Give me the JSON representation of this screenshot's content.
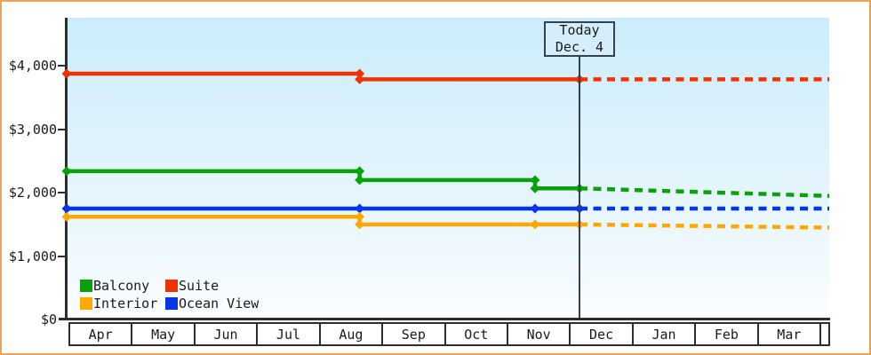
{
  "y_axis": {
    "labels": [
      "$0",
      "$1,000",
      "$2,000",
      "$3,000",
      "$4,000"
    ],
    "values": [
      0,
      1000,
      2000,
      3000,
      4000
    ]
  },
  "x_axis": {
    "months": [
      "Apr",
      "May",
      "Jun",
      "Jul",
      "Aug",
      "Sep",
      "Oct",
      "Nov",
      "Dec",
      "Jan",
      "Feb",
      "Mar"
    ]
  },
  "legend": {
    "items": [
      {
        "label": "Balcony",
        "color": "#09a109"
      },
      {
        "label": "Suite",
        "color": "#f13200"
      },
      {
        "label": "Interior",
        "color": "#ffa800"
      },
      {
        "label": "Ocean View",
        "color": "#0335ee"
      }
    ]
  },
  "chart_data": {
    "type": "line",
    "x_unit": "months from Apr (fraction = day of month)",
    "x_categories": [
      "Apr",
      "May",
      "Jun",
      "Jul",
      "Aug",
      "Sep",
      "Oct",
      "Nov",
      "Dec",
      "Jan",
      "Feb",
      "Mar"
    ],
    "ylim": [
      0,
      4000
    ],
    "y_ticks": [
      0,
      1000,
      2000,
      3000,
      4000
    ],
    "grid": false,
    "legend_position": "bottom-left inside plot",
    "today": {
      "label": "Today",
      "date": "Dec. 4",
      "x": 8.07
    },
    "series": [
      {
        "name": "Suite",
        "color": "#f13200",
        "solid": [
          [
            0,
            3880
          ],
          [
            4.61,
            3880
          ],
          [
            4.61,
            3790
          ],
          [
            8.07,
            3790
          ]
        ],
        "projection": [
          [
            8.07,
            3790
          ],
          [
            12,
            3790
          ]
        ],
        "markers": [
          [
            0,
            3880
          ],
          [
            4.61,
            3880
          ],
          [
            4.61,
            3790
          ],
          [
            8.07,
            3790
          ]
        ]
      },
      {
        "name": "Balcony",
        "color": "#09a109",
        "solid": [
          [
            0,
            2340
          ],
          [
            4.61,
            2340
          ],
          [
            4.61,
            2200
          ],
          [
            7.37,
            2200
          ],
          [
            7.37,
            2070
          ],
          [
            8.07,
            2070
          ]
        ],
        "projection": [
          [
            8.07,
            2070
          ],
          [
            12,
            1950
          ]
        ],
        "markers": [
          [
            0,
            2340
          ],
          [
            4.61,
            2340
          ],
          [
            4.61,
            2200
          ],
          [
            7.37,
            2200
          ],
          [
            7.37,
            2070
          ],
          [
            8.07,
            2070
          ]
        ]
      },
      {
        "name": "Ocean View",
        "color": "#0335ee",
        "solid": [
          [
            0,
            1750
          ],
          [
            8.07,
            1750
          ]
        ],
        "projection": [
          [
            8.07,
            1750
          ],
          [
            12,
            1750
          ]
        ],
        "markers": [
          [
            0,
            1750
          ],
          [
            4.61,
            1750
          ],
          [
            7.37,
            1750
          ],
          [
            8.07,
            1750
          ]
        ]
      },
      {
        "name": "Interior",
        "color": "#ffa800",
        "solid": [
          [
            0,
            1620
          ],
          [
            4.61,
            1620
          ],
          [
            4.61,
            1500
          ],
          [
            8.07,
            1500
          ]
        ],
        "projection": [
          [
            8.07,
            1500
          ],
          [
            12,
            1450
          ]
        ],
        "markers": [
          [
            0,
            1620
          ],
          [
            4.61,
            1620
          ],
          [
            4.61,
            1500
          ],
          [
            7.37,
            1500
          ],
          [
            8.07,
            1500
          ]
        ]
      }
    ]
  }
}
